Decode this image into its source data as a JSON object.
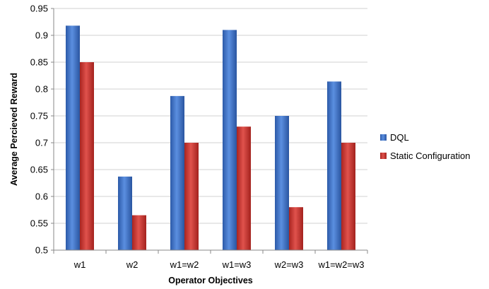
{
  "chart_data": {
    "type": "bar",
    "categories": [
      "w1",
      "w2",
      "w1=w2",
      "w1=w3",
      "w2=w3",
      "w1=w2=w3"
    ],
    "series": [
      {
        "name": "DQL",
        "values": [
          0.918,
          0.637,
          0.787,
          0.91,
          0.75,
          0.814
        ],
        "color": "#3a6fc4"
      },
      {
        "name": "Static Configuration",
        "values": [
          0.85,
          0.565,
          0.7,
          0.73,
          0.58,
          0.7
        ],
        "color": "#c9302c"
      }
    ],
    "xlabel": "Operator Objectives",
    "ylabel": "Average Percieved Reward",
    "ylim": [
      0.5,
      0.95
    ],
    "yticks": [
      "0.5",
      "0.55",
      "0.6",
      "0.65",
      "0.7",
      "0.75",
      "0.8",
      "0.85",
      "0.9",
      "0.95"
    ],
    "grid": true,
    "legend_position": "right"
  }
}
